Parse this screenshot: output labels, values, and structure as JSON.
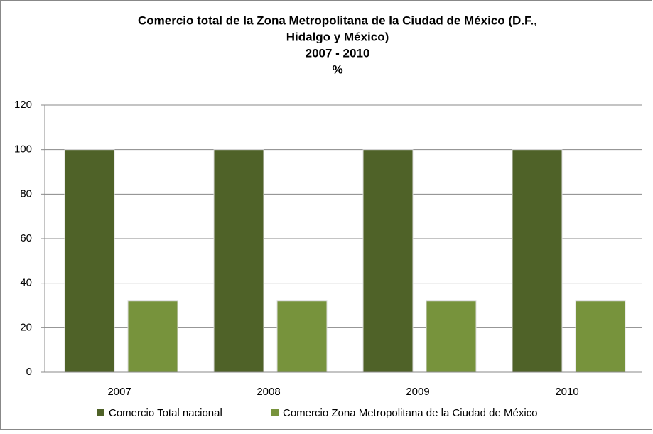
{
  "chart_data": {
    "type": "bar",
    "title": [
      "Comercio total de la Zona Metropolitana de la Ciudad de México (D.F.,",
      "Hidalgo y México)",
      "2007 - 2010",
      "%"
    ],
    "categories": [
      "2007",
      "2008",
      "2009",
      "2010"
    ],
    "series": [
      {
        "name": "Comercio Total nacional",
        "color": "#4f6228",
        "values": [
          100,
          100,
          100,
          100
        ]
      },
      {
        "name": "Comercio Zona Metropolitana de la Ciudad de México",
        "color": "#77933c",
        "values": [
          32,
          32,
          32,
          32
        ]
      }
    ],
    "ylim": [
      0,
      120
    ],
    "yticks": [
      0,
      20,
      40,
      60,
      80,
      100,
      120
    ],
    "grid": true,
    "legend": "bottom"
  }
}
